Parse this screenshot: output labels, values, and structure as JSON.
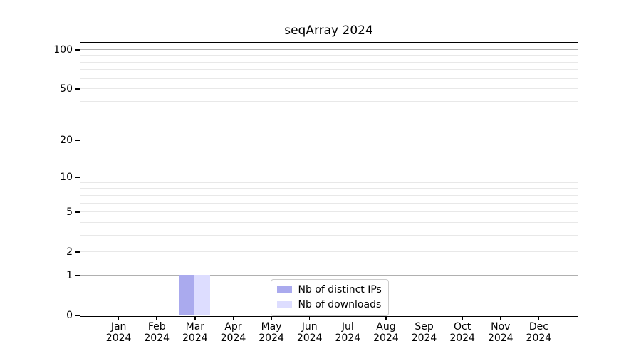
{
  "chart_data": {
    "type": "bar",
    "title": "seqArray 2024",
    "categories": [
      "Jan 2024",
      "Feb 2024",
      "Mar 2024",
      "Apr 2024",
      "May 2024",
      "Jun 2024",
      "Jul 2024",
      "Aug 2024",
      "Sep 2024",
      "Oct 2024",
      "Nov 2024",
      "Dec 2024"
    ],
    "series": [
      {
        "name": "Nb of distinct IPs",
        "color": "#aaaaee",
        "values": [
          0,
          0,
          1,
          0,
          0,
          0,
          0,
          0,
          0,
          0,
          0,
          0
        ]
      },
      {
        "name": "Nb of downloads",
        "color": "#ddddff",
        "values": [
          0,
          0,
          1,
          0,
          0,
          0,
          0,
          0,
          0,
          0,
          0,
          0
        ]
      }
    ],
    "xlabel": "",
    "ylabel": "",
    "yscale": "log1p",
    "y_ticks": [
      0,
      1,
      2,
      5,
      10,
      20,
      50,
      100
    ],
    "ylim": [
      0,
      113
    ],
    "grid": "horizontal log gridlines, major at 1/10/100, minor at 2-9 and 20-90",
    "legend_position": "lower center",
    "colors": {
      "major_grid": "#b0b0b0",
      "minor_grid": "#e8e8e8",
      "axis": "#000000",
      "background": "#ffffff"
    }
  }
}
